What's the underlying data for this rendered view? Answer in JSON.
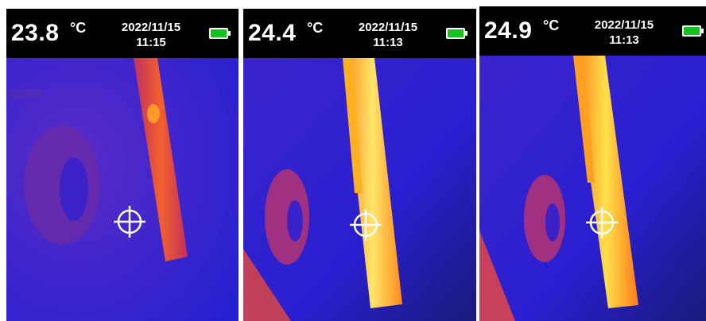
{
  "readings": [
    {
      "temperature": "23.8",
      "unit": "°C",
      "date": "2022/11/15",
      "time": "11:15",
      "battery_icon": "battery-full-icon",
      "battery_color": "#16c21e"
    },
    {
      "temperature": "24.4",
      "unit": "°C",
      "date": "2022/11/15",
      "time": "11:13",
      "battery_icon": "battery-full-icon",
      "battery_color": "#16c21e"
    },
    {
      "temperature": "24.9",
      "unit": "°C",
      "date": "2022/11/15",
      "time": "11:13",
      "battery_icon": "battery-full-icon",
      "battery_color": "#16c21e"
    }
  ],
  "palette": {
    "cold": "#2a1fd6",
    "mid": "#b0307a",
    "hot": "#ffd23a"
  }
}
